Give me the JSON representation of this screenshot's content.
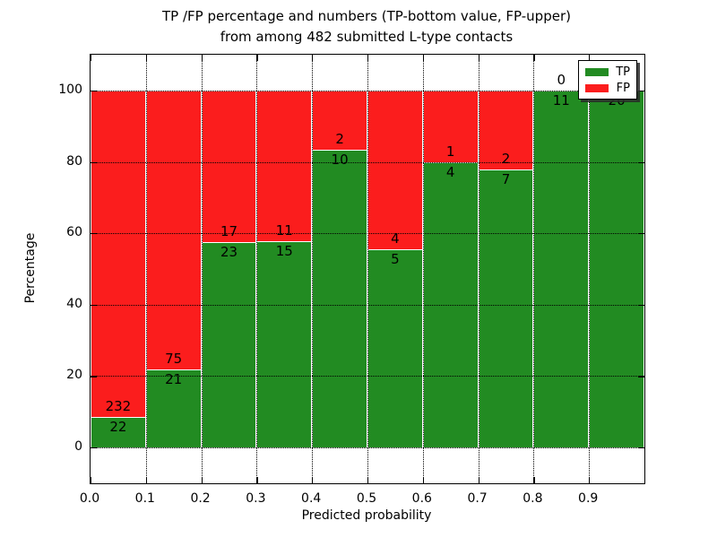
{
  "title": {
    "line1": "TP /FP percentage and numbers (TP-bottom value, FP-upper)",
    "line2": "from among 482 submitted L-type contacts"
  },
  "axes": {
    "xlabel": "Predicted probability",
    "ylabel": "Percentage",
    "x_ticks": [
      "0.0",
      "0.1",
      "0.2",
      "0.3",
      "0.4",
      "0.5",
      "0.6",
      "0.7",
      "0.8",
      "0.9"
    ],
    "y_ticks": [
      0,
      20,
      40,
      60,
      80,
      100
    ],
    "xlim": [
      0.0,
      1.0
    ],
    "ylim": [
      -10,
      110
    ],
    "grid": "dotted"
  },
  "legend": {
    "position": "upper right",
    "shadow": true,
    "items": [
      {
        "label": "TP",
        "color": "#228b22"
      },
      {
        "label": "FP",
        "color": "#fb1d1d"
      }
    ]
  },
  "chart_data": {
    "type": "bar",
    "stacked": true,
    "normalized_to_percent": 100,
    "total_contacts": 482,
    "title": "TP /FP percentage and numbers (TP-bottom value, FP-upper) from among 482 submitted L-type contacts",
    "xlabel": "Predicted probability",
    "ylabel": "Percentage",
    "bin_width": 0.1,
    "colors": {
      "tp": "#228b22",
      "fp": "#fb1d1d"
    },
    "series": [
      {
        "name": "TP",
        "values": [
          22,
          21,
          23,
          15,
          10,
          5,
          4,
          7,
          11,
          20
        ]
      },
      {
        "name": "FP",
        "values": [
          232,
          75,
          17,
          11,
          2,
          4,
          1,
          2,
          0,
          0
        ]
      }
    ],
    "bins": [
      {
        "range": "0.0-0.1",
        "x_start": 0.0,
        "tp_count": 22,
        "fp_count": 232,
        "tp_pct": 8.66,
        "fp_pct": 91.34
      },
      {
        "range": "0.1-0.2",
        "x_start": 0.1,
        "tp_count": 21,
        "fp_count": 75,
        "tp_pct": 21.88,
        "fp_pct": 78.12
      },
      {
        "range": "0.2-0.3",
        "x_start": 0.2,
        "tp_count": 23,
        "fp_count": 17,
        "tp_pct": 57.5,
        "fp_pct": 42.5
      },
      {
        "range": "0.3-0.4",
        "x_start": 0.3,
        "tp_count": 15,
        "fp_count": 11,
        "tp_pct": 57.69,
        "fp_pct": 42.31
      },
      {
        "range": "0.4-0.5",
        "x_start": 0.4,
        "tp_count": 10,
        "fp_count": 2,
        "tp_pct": 83.33,
        "fp_pct": 16.67
      },
      {
        "range": "0.5-0.6",
        "x_start": 0.5,
        "tp_count": 5,
        "fp_count": 4,
        "tp_pct": 55.56,
        "fp_pct": 44.44
      },
      {
        "range": "0.6-0.7",
        "x_start": 0.6,
        "tp_count": 4,
        "fp_count": 1,
        "tp_pct": 80.0,
        "fp_pct": 20.0
      },
      {
        "range": "0.7-0.8",
        "x_start": 0.7,
        "tp_count": 7,
        "fp_count": 2,
        "tp_pct": 77.78,
        "fp_pct": 22.22
      },
      {
        "range": "0.8-0.9",
        "x_start": 0.8,
        "tp_count": 11,
        "fp_count": 0,
        "tp_pct": 100.0,
        "fp_pct": 0.0
      },
      {
        "range": "0.9-1.0",
        "x_start": 0.9,
        "tp_count": 20,
        "fp_count": 0,
        "tp_pct": 100.0,
        "fp_pct": 0.0
      }
    ]
  }
}
